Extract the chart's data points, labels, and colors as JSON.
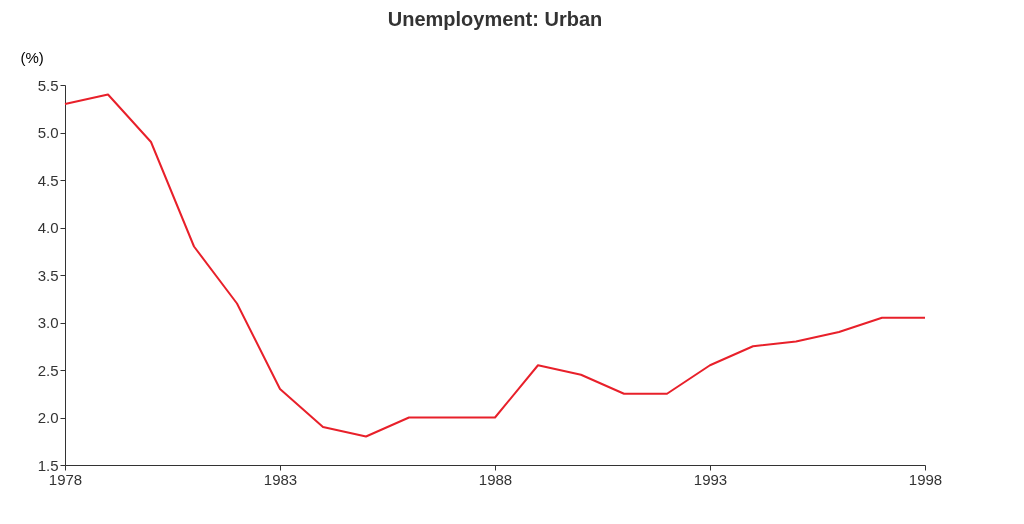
{
  "chart_data": {
    "type": "line",
    "title": "Unemployment: Urban",
    "ylabel": "(%)",
    "x": [
      1978,
      1979,
      1980,
      1981,
      1982,
      1983,
      1984,
      1985,
      1986,
      1987,
      1988,
      1989,
      1990,
      1991,
      1992,
      1993,
      1994,
      1995,
      1996,
      1997,
      1998
    ],
    "series": [
      {
        "color": "#e8202a",
        "values": [
          5.3,
          5.4,
          4.9,
          3.8,
          3.2,
          2.3,
          1.9,
          1.8,
          2.0,
          2.0,
          2.0,
          2.55,
          2.45,
          2.25,
          2.25,
          2.55,
          2.75,
          2.8,
          2.9,
          3.05,
          3.05
        ]
      }
    ],
    "xlim": [
      1978,
      1998
    ],
    "xticks": [
      1978,
      1983,
      1988,
      1993,
      1998
    ],
    "ylim": [
      1.5,
      5.5
    ],
    "yticks": [
      {
        "value": 1.5,
        "label": "1.5"
      },
      {
        "value": 2,
        "label": "2.0"
      },
      {
        "value": 2.5,
        "label": "2.5"
      },
      {
        "value": 3,
        "label": "3.0"
      },
      {
        "value": 3.5,
        "label": "3.5"
      },
      {
        "value": 4,
        "label": "4.0"
      },
      {
        "value": 4.5,
        "label": "4.5"
      },
      {
        "value": 5,
        "label": "5.0"
      },
      {
        "value": 5.5,
        "label": "5.5"
      }
    ],
    "grid": false,
    "marker": "none",
    "line_style": "solid"
  }
}
